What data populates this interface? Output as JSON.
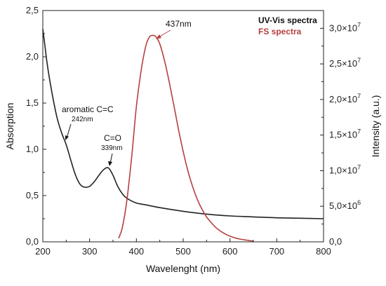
{
  "chart_data": {
    "type": "line",
    "xlabel": "Wavelenght (nm)",
    "ylabel_left": "Absorption",
    "ylabel_right": "Intensity (a.u.)",
    "xlim": [
      200,
      800
    ],
    "ylim_left": [
      0,
      2.5
    ],
    "ylim_right": [
      0,
      32500000
    ],
    "x_ticks": [
      "200",
      "300",
      "400",
      "500",
      "600",
      "700",
      "800"
    ],
    "y_left_ticks": [
      "0,0",
      "0,5",
      "1,0",
      "1,5",
      "2,0",
      "2,5"
    ],
    "y_right_ticks": [
      {
        "mantissa": "0,0",
        "exp": ""
      },
      {
        "mantissa": "5,0×10",
        "exp": "6"
      },
      {
        "mantissa": "1,0×10",
        "exp": "7"
      },
      {
        "mantissa": "1,5×10",
        "exp": "7"
      },
      {
        "mantissa": "2,0×10",
        "exp": "7"
      },
      {
        "mantissa": "2,5×10",
        "exp": "7"
      },
      {
        "mantissa": "3,0×10",
        "exp": "7"
      }
    ],
    "series": [
      {
        "name": "UV-Vis spectra",
        "color": "#222222",
        "axis": "left",
        "x": [
          200,
          205,
          210,
          220,
          230,
          240,
          250,
          260,
          270,
          280,
          290,
          300,
          310,
          320,
          330,
          340,
          350,
          360,
          370,
          380,
          400,
          420,
          450,
          500,
          550,
          600,
          650,
          700,
          750,
          800
        ],
        "y": [
          2.3,
          2.1,
          1.9,
          1.6,
          1.35,
          1.18,
          1.05,
          0.88,
          0.72,
          0.62,
          0.59,
          0.6,
          0.65,
          0.72,
          0.78,
          0.8,
          0.72,
          0.6,
          0.52,
          0.47,
          0.42,
          0.4,
          0.37,
          0.33,
          0.3,
          0.28,
          0.27,
          0.26,
          0.255,
          0.25
        ]
      },
      {
        "name": "FS spectra",
        "color": "#b5403f",
        "axis": "right",
        "x": [
          362,
          370,
          380,
          390,
          400,
          410,
          420,
          428,
          434,
          437,
          442,
          450,
          460,
          470,
          480,
          490,
          500,
          510,
          520,
          530,
          540,
          550,
          560,
          570,
          580,
          590,
          600,
          620,
          650
        ],
        "y": [
          500000,
          2000000,
          6000000,
          12000000,
          19000000,
          24000000,
          27500000,
          28800000,
          29000000,
          29000000,
          28800000,
          27800000,
          25500000,
          22500000,
          19200000,
          15800000,
          12700000,
          10000000,
          7800000,
          6000000,
          4600000,
          3500000,
          2700000,
          2000000,
          1500000,
          1100000,
          800000,
          400000,
          100000
        ]
      }
    ],
    "annotations": [
      {
        "text": "aromatic C=C",
        "sub": "242nm"
      },
      {
        "text": "C=O",
        "sub": "339nm"
      },
      {
        "text": "437nm",
        "color": "#b5403f"
      }
    ],
    "legend": {
      "position": "top-right"
    },
    "grid": false
  }
}
